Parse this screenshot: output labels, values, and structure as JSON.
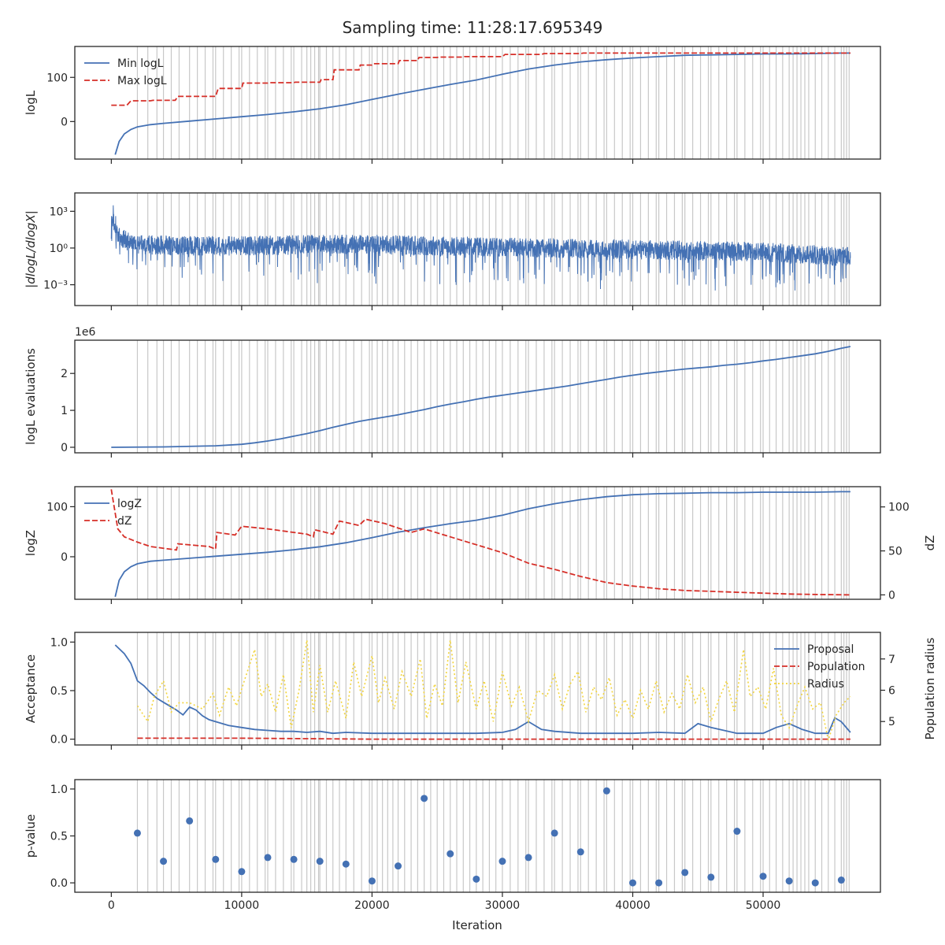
{
  "title": "Sampling time: 11:28:17.695349",
  "colors": {
    "blue": "#4471b4",
    "red": "#d62f28",
    "yellow": "#f2d43d",
    "vline": "#c8c8c8",
    "axis": "#262626"
  },
  "shared_x": {
    "xlim": [
      -2800,
      59000
    ],
    "ticks": [
      0,
      10000,
      20000,
      30000,
      40000,
      50000
    ],
    "tick_labels": [
      "0",
      "10000",
      "20000",
      "30000",
      "40000",
      "50000"
    ],
    "xlabel": "Iteration"
  },
  "vlines": [
    2000,
    2800,
    3500,
    4000,
    4600,
    5200,
    6000,
    6600,
    7200,
    7800,
    8000,
    8600,
    9200,
    9800,
    10000,
    10600,
    11200,
    11800,
    12000,
    12600,
    13200,
    13800,
    14000,
    14600,
    15000,
    15300,
    15600,
    15900,
    16000,
    16500,
    17000,
    17500,
    18000,
    18600,
    19200,
    19800,
    20000,
    20400,
    20800,
    21200,
    21600,
    22000,
    22500,
    23000,
    23500,
    24000,
    24500,
    25000,
    25500,
    26000,
    26500,
    27000,
    27500,
    28000,
    28500,
    29000,
    29500,
    30000,
    30600,
    31200,
    31800,
    32000,
    32600,
    33200,
    33800,
    34000,
    34600,
    35200,
    35800,
    36000,
    36600,
    37200,
    37800,
    38000,
    38600,
    39200,
    39800,
    40000,
    40600,
    41200,
    41800,
    42000,
    42600,
    43200,
    43800,
    44000,
    44600,
    45200,
    45800,
    46000,
    46600,
    47200,
    47800,
    48000,
    48600,
    49200,
    49800,
    50000,
    50500,
    51000,
    51500,
    52000,
    52300,
    52600,
    52900,
    53200,
    53500,
    54000,
    54500,
    55000,
    55500,
    56000,
    56200,
    56400,
    56600
  ],
  "chart_data": [
    {
      "type": "line",
      "ylabel": "logL",
      "ylim": [
        -85,
        170
      ],
      "yticks": [
        0,
        100
      ],
      "ytick_labels": [
        "0",
        "100"
      ],
      "legend": "top-left",
      "series": [
        {
          "name": "Min logL",
          "style": "solid",
          "color": "#4471b4",
          "x": [
            300,
            600,
            1000,
            1500,
            2000,
            3000,
            4000,
            6000,
            8000,
            10000,
            12000,
            14000,
            16000,
            18000,
            20000,
            22000,
            24000,
            26000,
            28000,
            30000,
            32000,
            34000,
            36000,
            38000,
            40000,
            42000,
            44000,
            46000,
            48000,
            50000,
            52000,
            54000,
            56000,
            56700
          ],
          "y": [
            -75,
            -45,
            -28,
            -18,
            -12,
            -7,
            -4,
            1,
            6,
            11,
            16,
            22,
            29,
            38,
            50,
            62,
            73,
            84,
            94,
            107,
            119,
            128,
            135,
            140,
            144,
            147,
            150,
            151,
            152,
            153,
            153,
            154,
            155,
            155
          ]
        },
        {
          "name": "Max logL",
          "style": "dashed",
          "color": "#d62f28",
          "x": [
            0,
            1200,
            1500,
            3000,
            3200,
            4900,
            5100,
            8000,
            8200,
            10000,
            10100,
            12000,
            12100,
            14000,
            14100,
            16000,
            16100,
            17000,
            17100,
            19000,
            19100,
            20000,
            20100,
            22000,
            22100,
            23500,
            23600,
            25000,
            25100,
            27000,
            27100,
            30000,
            30200,
            33000,
            33200,
            36000,
            36200,
            56700
          ],
          "y": [
            37,
            37,
            47,
            47,
            48,
            48,
            57,
            57,
            75,
            75,
            87,
            87,
            88,
            88,
            89,
            89,
            95,
            95,
            117,
            117,
            128,
            128,
            131,
            131,
            138,
            138,
            145,
            145,
            146,
            146,
            147,
            147,
            152,
            152,
            154,
            154,
            155,
            155
          ]
        }
      ]
    },
    {
      "type": "line",
      "ylabel": "|dlogL/dlogX|",
      "yscale": "log",
      "ylim": [
        -4.7,
        4.5
      ],
      "yticks": [
        -3,
        0,
        3
      ],
      "ytick_labels": [
        "10⁻³",
        "10⁰",
        "10³"
      ],
      "series": [
        {
          "name": "",
          "style": "noisy",
          "color": "#4471b4",
          "x": [
            0,
            300,
            1000,
            2000,
            5000,
            10000,
            15000,
            20000,
            25000,
            30000,
            35000,
            40000,
            45000,
            50000,
            55000,
            56700
          ],
          "y": [
            2.5,
            1.5,
            1.0,
            0.6,
            0.5,
            0.5,
            0.6,
            0.6,
            0.5,
            0.4,
            0.3,
            0.2,
            0.1,
            0.0,
            -0.3,
            -0.4
          ]
        }
      ]
    },
    {
      "type": "line",
      "ylabel": "logL evaluations",
      "ylim": [
        -0.15,
        2.9
      ],
      "yticks": [
        0,
        1,
        2
      ],
      "ytick_labels": [
        "0",
        "1",
        "2"
      ],
      "scale_label": "1e6",
      "series": [
        {
          "name": "",
          "style": "solid",
          "color": "#4471b4",
          "x": [
            0,
            4000,
            8000,
            10000,
            11000,
            12000,
            13000,
            14000,
            15000,
            16000,
            17000,
            18000,
            19000,
            20000,
            21000,
            22000,
            23000,
            24000,
            25000,
            26000,
            27000,
            28000,
            29000,
            30000,
            31000,
            32000,
            33000,
            34000,
            35000,
            36000,
            37000,
            38000,
            39000,
            40000,
            41000,
            42000,
            43000,
            44000,
            45000,
            46000,
            47000,
            48000,
            49000,
            50000,
            51000,
            52000,
            53000,
            54000,
            55000,
            56000,
            56700
          ],
          "y": [
            0.0,
            0.01,
            0.04,
            0.08,
            0.12,
            0.17,
            0.23,
            0.3,
            0.37,
            0.45,
            0.54,
            0.62,
            0.7,
            0.76,
            0.82,
            0.88,
            0.95,
            1.02,
            1.1,
            1.17,
            1.23,
            1.3,
            1.36,
            1.41,
            1.46,
            1.51,
            1.56,
            1.61,
            1.66,
            1.72,
            1.78,
            1.84,
            1.9,
            1.95,
            2.0,
            2.04,
            2.08,
            2.12,
            2.15,
            2.18,
            2.22,
            2.25,
            2.29,
            2.34,
            2.38,
            2.43,
            2.48,
            2.53,
            2.6,
            2.68,
            2.73
          ]
        }
      ]
    },
    {
      "type": "line",
      "ylabel": "logZ",
      "ylim": [
        -85,
        140
      ],
      "yticks": [
        0,
        100
      ],
      "ytick_labels": [
        "0",
        "100"
      ],
      "ylabel_right": "dZ",
      "ylim_right": [
        -5,
        123
      ],
      "yticks_right": [
        0,
        50,
        100
      ],
      "ytick_labels_right": [
        "0",
        "50",
        "100"
      ],
      "legend": "top-left",
      "series": [
        {
          "name": "logZ",
          "style": "solid",
          "color": "#4471b4",
          "axis": "left",
          "x": [
            300,
            600,
            1000,
            1500,
            2000,
            3000,
            4000,
            6000,
            8000,
            10000,
            12000,
            14000,
            16000,
            18000,
            20000,
            22000,
            24000,
            26000,
            28000,
            30000,
            32000,
            34000,
            36000,
            38000,
            40000,
            42000,
            44000,
            46000,
            48000,
            50000,
            52000,
            54000,
            56000,
            56700
          ],
          "y": [
            -80,
            -47,
            -30,
            -20,
            -14,
            -9,
            -7,
            -3,
            1,
            5,
            9,
            14,
            20,
            28,
            38,
            49,
            58,
            66,
            73,
            83,
            96,
            106,
            114,
            120,
            124,
            126,
            127,
            128,
            128,
            129,
            129,
            129,
            130,
            130
          ]
        },
        {
          "name": "dZ",
          "style": "dashed",
          "color": "#d62f28",
          "axis": "right",
          "x": [
            0,
            500,
            1000,
            2000,
            3000,
            5000,
            5100,
            7500,
            8000,
            8100,
            9500,
            10000,
            12000,
            14000,
            15000,
            15500,
            15600,
            17000,
            17500,
            19000,
            19500,
            21000,
            22000,
            23000,
            24000,
            26000,
            28000,
            30000,
            31000,
            32000,
            34000,
            36000,
            38000,
            40000,
            42000,
            44000,
            46000,
            48000,
            50000,
            52000,
            54000,
            56700
          ],
          "y": [
            120,
            75,
            66,
            60,
            55,
            51,
            58,
            55,
            52,
            71,
            68,
            78,
            75,
            71,
            69,
            66,
            74,
            69,
            84,
            79,
            86,
            81,
            76,
            71,
            75,
            66,
            57,
            48,
            42,
            36,
            29,
            21,
            14,
            10,
            7,
            5,
            4,
            3,
            2,
            1,
            0.5,
            0
          ]
        }
      ]
    },
    {
      "type": "line",
      "ylabel": "Acceptance",
      "ylim": [
        -0.06,
        1.1
      ],
      "yticks": [
        0.0,
        0.5,
        1.0
      ],
      "ytick_labels": [
        "0.0",
        "0.5",
        "1.0"
      ],
      "ylabel_right": "Population radius",
      "ylim_right": [
        4.25,
        7.85
      ],
      "yticks_right": [
        5,
        6,
        7
      ],
      "ytick_labels_right": [
        "5",
        "6",
        "7"
      ],
      "legend": "top-right",
      "series": [
        {
          "name": "Proposal",
          "style": "solid",
          "color": "#4471b4",
          "axis": "left",
          "x": [
            300,
            1000,
            1500,
            2000,
            2500,
            3000,
            3500,
            4000,
            4500,
            5000,
            5500,
            6000,
            6500,
            7000,
            7500,
            8000,
            9000,
            10000,
            11000,
            12000,
            13000,
            14000,
            15000,
            16000,
            17000,
            18000,
            20000,
            22000,
            24000,
            26000,
            28000,
            30000,
            31000,
            32000,
            33000,
            34000,
            36000,
            38000,
            40000,
            42000,
            44000,
            45000,
            46000,
            48000,
            50000,
            51000,
            52000,
            53000,
            54000,
            55000,
            55500,
            56000,
            56700
          ],
          "y": [
            0.97,
            0.88,
            0.78,
            0.6,
            0.55,
            0.48,
            0.42,
            0.38,
            0.34,
            0.3,
            0.25,
            0.33,
            0.3,
            0.24,
            0.2,
            0.18,
            0.14,
            0.12,
            0.1,
            0.09,
            0.08,
            0.08,
            0.07,
            0.08,
            0.06,
            0.07,
            0.06,
            0.06,
            0.06,
            0.06,
            0.06,
            0.07,
            0.1,
            0.18,
            0.1,
            0.08,
            0.06,
            0.06,
            0.06,
            0.07,
            0.06,
            0.16,
            0.12,
            0.06,
            0.06,
            0.12,
            0.16,
            0.1,
            0.06,
            0.06,
            0.22,
            0.18,
            0.07
          ]
        },
        {
          "name": "Population",
          "style": "dashed",
          "color": "#d62f28",
          "axis": "left",
          "x": [
            2000,
            5000,
            10000,
            20000,
            30000,
            40000,
            50000,
            56700
          ],
          "y": [
            0.01,
            0.01,
            0.01,
            0.0,
            0.0,
            0.0,
            0.0,
            0.0
          ]
        },
        {
          "name": "Radius",
          "style": "dotted",
          "color": "#f2d43d",
          "axis": "right",
          "x": [
            2000,
            2800,
            3300,
            4000,
            4600,
            5200,
            6000,
            7000,
            7800,
            8300,
            9000,
            9600,
            10200,
            11000,
            11500,
            12000,
            12600,
            13200,
            13800,
            14400,
            15000,
            15500,
            16000,
            16600,
            17200,
            18000,
            18600,
            19200,
            20000,
            20500,
            21000,
            21700,
            22300,
            23000,
            23700,
            24200,
            24800,
            25400,
            26000,
            26600,
            27200,
            28000,
            28600,
            29300,
            30000,
            30700,
            31300,
            32000,
            32700,
            33400,
            34000,
            34600,
            35200,
            35800,
            36400,
            37000,
            37600,
            38200,
            38800,
            39400,
            40000,
            40600,
            41200,
            41800,
            42400,
            43000,
            43600,
            44200,
            44800,
            45400,
            46000,
            46600,
            47200,
            47800,
            48500,
            49000,
            49600,
            50200,
            50800,
            51400,
            52000,
            52600,
            53200,
            53800,
            54400,
            55000,
            55600,
            56200,
            56700
          ],
          "y": [
            5.5,
            5.0,
            5.8,
            6.3,
            5.3,
            5.6,
            5.6,
            5.4,
            5.9,
            5.2,
            6.1,
            5.5,
            6.3,
            7.3,
            5.8,
            6.2,
            5.3,
            6.5,
            4.8,
            6.0,
            7.6,
            5.3,
            6.8,
            5.3,
            6.3,
            5.1,
            6.9,
            5.8,
            7.1,
            5.6,
            6.4,
            5.4,
            6.6,
            5.8,
            7.0,
            5.1,
            6.2,
            5.5,
            7.6,
            5.6,
            6.9,
            5.4,
            6.3,
            5.0,
            6.6,
            5.5,
            6.1,
            5.0,
            6.0,
            5.8,
            6.5,
            5.4,
            6.2,
            6.6,
            5.3,
            6.1,
            5.7,
            6.4,
            5.2,
            5.7,
            5.1,
            6.0,
            5.4,
            6.3,
            5.3,
            5.9,
            5.4,
            6.5,
            5.6,
            6.1,
            5.0,
            5.7,
            6.3,
            5.3,
            7.3,
            5.8,
            6.1,
            5.4,
            6.7,
            5.2,
            4.8,
            5.5,
            6.1,
            5.4,
            5.6,
            4.4,
            5.2,
            5.6,
            5.8
          ]
        }
      ]
    },
    {
      "type": "scatter",
      "ylabel": "p-value",
      "ylim": [
        -0.1,
        1.1
      ],
      "yticks": [
        0.0,
        0.5,
        1.0
      ],
      "ytick_labels": [
        "0.0",
        "0.5",
        "1.0"
      ],
      "series": [
        {
          "name": "",
          "style": "markers",
          "color": "#4471b4",
          "x": [
            2000,
            4000,
            6000,
            8000,
            10000,
            12000,
            14000,
            16000,
            18000,
            20000,
            22000,
            24000,
            26000,
            28000,
            30000,
            32000,
            34000,
            36000,
            38000,
            40000,
            42000,
            44000,
            46000,
            48000,
            50000,
            52000,
            54000,
            56000
          ],
          "y": [
            0.53,
            0.23,
            0.66,
            0.25,
            0.12,
            0.27,
            0.25,
            0.23,
            0.2,
            0.02,
            0.18,
            0.9,
            0.31,
            0.04,
            0.23,
            0.27,
            0.53,
            0.33,
            0.98,
            0.0,
            0.0,
            0.11,
            0.06,
            0.55,
            0.07,
            0.02,
            0.0,
            0.03
          ]
        }
      ]
    }
  ]
}
